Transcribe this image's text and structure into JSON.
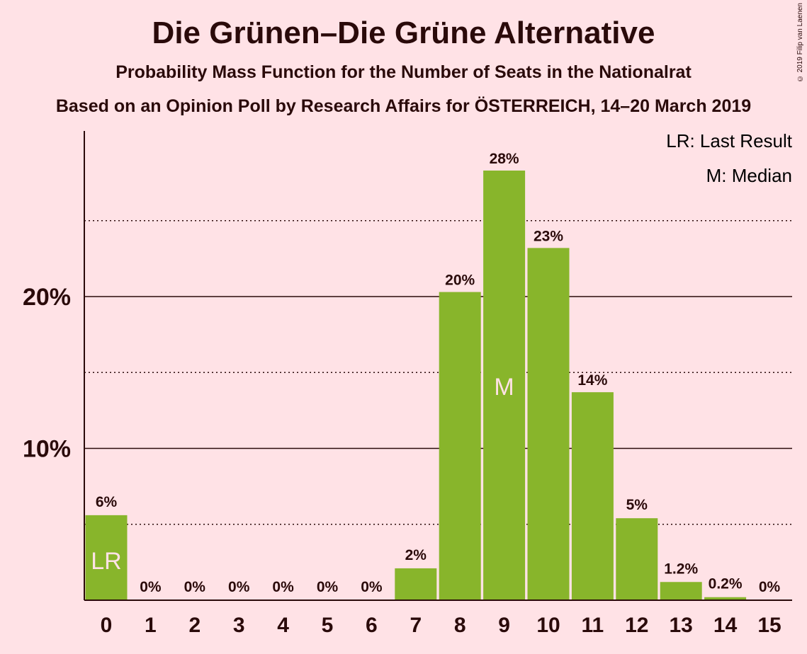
{
  "title": "Die Grünen–Die Grüne Alternative",
  "subtitle": "Probability Mass Function for the Number of Seats in the Nationalrat",
  "subtitle2": "Based on an Opinion Poll by Research Affairs for ÖSTERREICH, 14–20 March 2019",
  "copyright": "© 2019 Filip van Laenen",
  "legend": {
    "lr": "LR: Last Result",
    "m": "M: Median"
  },
  "colors": {
    "bar": "#88B52B",
    "background": "#FFE2E6",
    "text": "#2a0a0a"
  },
  "chart_data": {
    "type": "bar",
    "categories": [
      "0",
      "1",
      "2",
      "3",
      "4",
      "5",
      "6",
      "7",
      "8",
      "9",
      "10",
      "11",
      "12",
      "13",
      "14",
      "15"
    ],
    "values": [
      5.6,
      0,
      0,
      0,
      0,
      0,
      0,
      2.1,
      20.3,
      28.3,
      23.2,
      13.7,
      5.4,
      1.2,
      0.2,
      0
    ],
    "value_labels": [
      "6%",
      "0%",
      "0%",
      "0%",
      "0%",
      "0%",
      "0%",
      "2%",
      "20%",
      "28%",
      "23%",
      "14%",
      "5%",
      "1.2%",
      "0.2%",
      "0%"
    ],
    "y_ticks": [
      {
        "value": 10,
        "label": "10%"
      },
      {
        "value": 20,
        "label": "20%"
      }
    ],
    "dotted_gridlines": [
      5,
      15,
      25
    ],
    "ylim": [
      0,
      31
    ],
    "last_result_index": 0,
    "last_result_label": "LR",
    "median_index": 9,
    "median_label": "M"
  }
}
